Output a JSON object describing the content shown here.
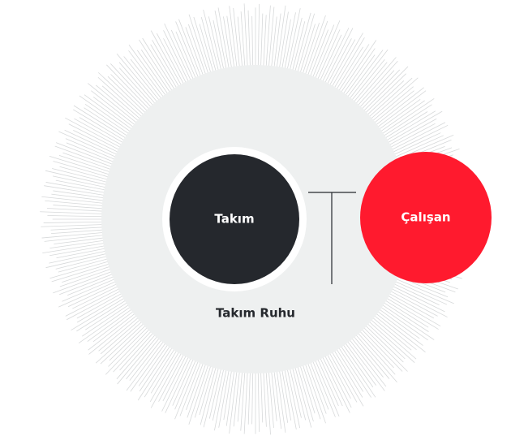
{
  "nodes": [
    {
      "label": "Takım"
    },
    {
      "label": "Çalışan"
    }
  ],
  "caption": "Takım Ruhu"
}
